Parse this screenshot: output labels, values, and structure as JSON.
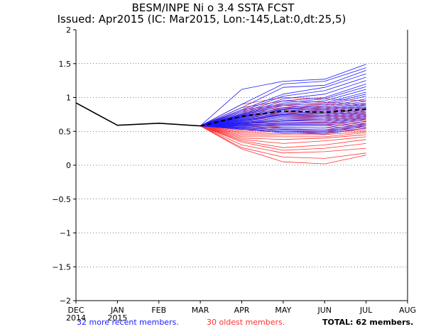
{
  "chart_data": {
    "type": "line",
    "title": "BESM/INPE Ni o 3.4 SSTA FCST",
    "subtitle": "Issued: Apr2015 (IC: Mar2015, Lon:-145,Lat:0,dt:25,5)",
    "xlabel": "",
    "ylabel": "",
    "categories": [
      "DEC",
      "JAN",
      "FEB",
      "MAR",
      "APR",
      "MAY",
      "JUN",
      "JUL",
      "AUG"
    ],
    "year_labels": {
      "DEC": "2014",
      "JAN": "2015"
    },
    "ylim": [
      -2,
      2
    ],
    "yticks": [
      2,
      1.5,
      1,
      0.5,
      0,
      -0.5,
      -1,
      -1.5,
      -2
    ],
    "ytick_labels": [
      "2",
      "1.5",
      "1",
      "0.5",
      "0",
      "−0.5",
      "−1",
      "−1.5",
      "−2"
    ],
    "observed": {
      "name": "observed",
      "color": "#000000",
      "values": [
        0.92,
        0.59,
        0.62,
        0.58
      ]
    },
    "ensemble_mean": {
      "name": "ensemble mean",
      "color": "#000000",
      "values": [
        0.58,
        0.72,
        0.8,
        0.78,
        0.83
      ]
    },
    "recent_members": {
      "label": "32 more recent members.",
      "color": "#1a1aff",
      "series": [
        [
          0.58,
          1.12,
          1.24,
          1.27,
          1.49
        ],
        [
          0.58,
          0.9,
          1.2,
          1.24,
          1.44
        ],
        [
          0.58,
          0.85,
          1.15,
          1.18,
          1.4
        ],
        [
          0.58,
          0.82,
          1.05,
          1.15,
          1.35
        ],
        [
          0.58,
          0.8,
          1.02,
          1.1,
          1.3
        ],
        [
          0.58,
          0.78,
          0.98,
          1.05,
          1.25
        ],
        [
          0.58,
          0.76,
          0.95,
          1.0,
          1.2
        ],
        [
          0.58,
          0.75,
          0.92,
          0.98,
          1.16
        ],
        [
          0.58,
          0.74,
          0.9,
          0.95,
          1.12
        ],
        [
          0.58,
          0.73,
          0.88,
          0.92,
          1.08
        ],
        [
          0.58,
          0.72,
          0.85,
          0.9,
          1.05
        ],
        [
          0.58,
          0.71,
          0.83,
          0.88,
          1.02
        ],
        [
          0.58,
          0.7,
          0.82,
          0.86,
          0.98
        ],
        [
          0.58,
          0.69,
          0.8,
          0.84,
          0.95
        ],
        [
          0.58,
          0.68,
          0.78,
          0.82,
          0.92
        ],
        [
          0.58,
          0.67,
          0.76,
          0.8,
          0.9
        ],
        [
          0.58,
          0.66,
          0.75,
          0.78,
          0.88
        ],
        [
          0.58,
          0.66,
          0.74,
          0.76,
          0.86
        ],
        [
          0.58,
          0.65,
          0.72,
          0.74,
          0.84
        ],
        [
          0.58,
          0.64,
          0.7,
          0.72,
          0.82
        ],
        [
          0.58,
          0.63,
          0.68,
          0.7,
          0.8
        ],
        [
          0.58,
          0.62,
          0.66,
          0.68,
          0.78
        ],
        [
          0.58,
          0.62,
          0.65,
          0.66,
          0.76
        ],
        [
          0.58,
          0.61,
          0.63,
          0.64,
          0.74
        ],
        [
          0.58,
          0.6,
          0.61,
          0.62,
          0.72
        ],
        [
          0.58,
          0.59,
          0.6,
          0.6,
          0.7
        ],
        [
          0.58,
          0.58,
          0.58,
          0.58,
          0.68
        ],
        [
          0.58,
          0.57,
          0.56,
          0.55,
          0.65
        ],
        [
          0.58,
          0.56,
          0.54,
          0.52,
          0.62
        ],
        [
          0.58,
          0.55,
          0.52,
          0.5,
          0.6
        ],
        [
          0.58,
          0.54,
          0.5,
          0.48,
          0.58
        ],
        [
          0.58,
          0.53,
          0.48,
          0.46,
          0.55
        ]
      ]
    },
    "oldest_members": {
      "label": "30 oldest members.",
      "color": "#ff3030",
      "series": [
        [
          0.58,
          0.9,
          1.0,
          0.98,
          0.95
        ],
        [
          0.58,
          0.85,
          0.95,
          0.93,
          0.9
        ],
        [
          0.58,
          0.82,
          0.9,
          0.9,
          0.88
        ],
        [
          0.58,
          0.8,
          0.88,
          0.86,
          0.85
        ],
        [
          0.58,
          0.78,
          0.85,
          0.84,
          0.83
        ],
        [
          0.58,
          0.76,
          0.83,
          0.82,
          0.8
        ],
        [
          0.58,
          0.74,
          0.8,
          0.8,
          0.78
        ],
        [
          0.58,
          0.72,
          0.78,
          0.78,
          0.76
        ],
        [
          0.58,
          0.7,
          0.76,
          0.76,
          0.75
        ],
        [
          0.58,
          0.68,
          0.74,
          0.74,
          0.73
        ],
        [
          0.58,
          0.66,
          0.72,
          0.72,
          0.71
        ],
        [
          0.58,
          0.64,
          0.7,
          0.7,
          0.69
        ],
        [
          0.58,
          0.62,
          0.68,
          0.68,
          0.68
        ],
        [
          0.58,
          0.6,
          0.66,
          0.66,
          0.66
        ],
        [
          0.58,
          0.58,
          0.63,
          0.63,
          0.64
        ],
        [
          0.58,
          0.56,
          0.6,
          0.6,
          0.62
        ],
        [
          0.58,
          0.54,
          0.58,
          0.58,
          0.6
        ],
        [
          0.58,
          0.52,
          0.56,
          0.55,
          0.58
        ],
        [
          0.58,
          0.5,
          0.53,
          0.52,
          0.56
        ],
        [
          0.58,
          0.48,
          0.5,
          0.5,
          0.54
        ],
        [
          0.58,
          0.46,
          0.47,
          0.48,
          0.52
        ],
        [
          0.58,
          0.44,
          0.45,
          0.45,
          0.5
        ],
        [
          0.58,
          0.42,
          0.42,
          0.42,
          0.48
        ],
        [
          0.58,
          0.4,
          0.38,
          0.4,
          0.45
        ],
        [
          0.58,
          0.38,
          0.32,
          0.36,
          0.42
        ],
        [
          0.58,
          0.36,
          0.26,
          0.3,
          0.38
        ],
        [
          0.58,
          0.34,
          0.22,
          0.25,
          0.32
        ],
        [
          0.58,
          0.3,
          0.18,
          0.2,
          0.25
        ],
        [
          0.58,
          0.26,
          0.12,
          0.1,
          0.18
        ],
        [
          0.58,
          0.24,
          0.05,
          0.02,
          0.15
        ]
      ]
    },
    "forecast_start_index": 3,
    "total_label": "TOTAL: 62 members."
  }
}
